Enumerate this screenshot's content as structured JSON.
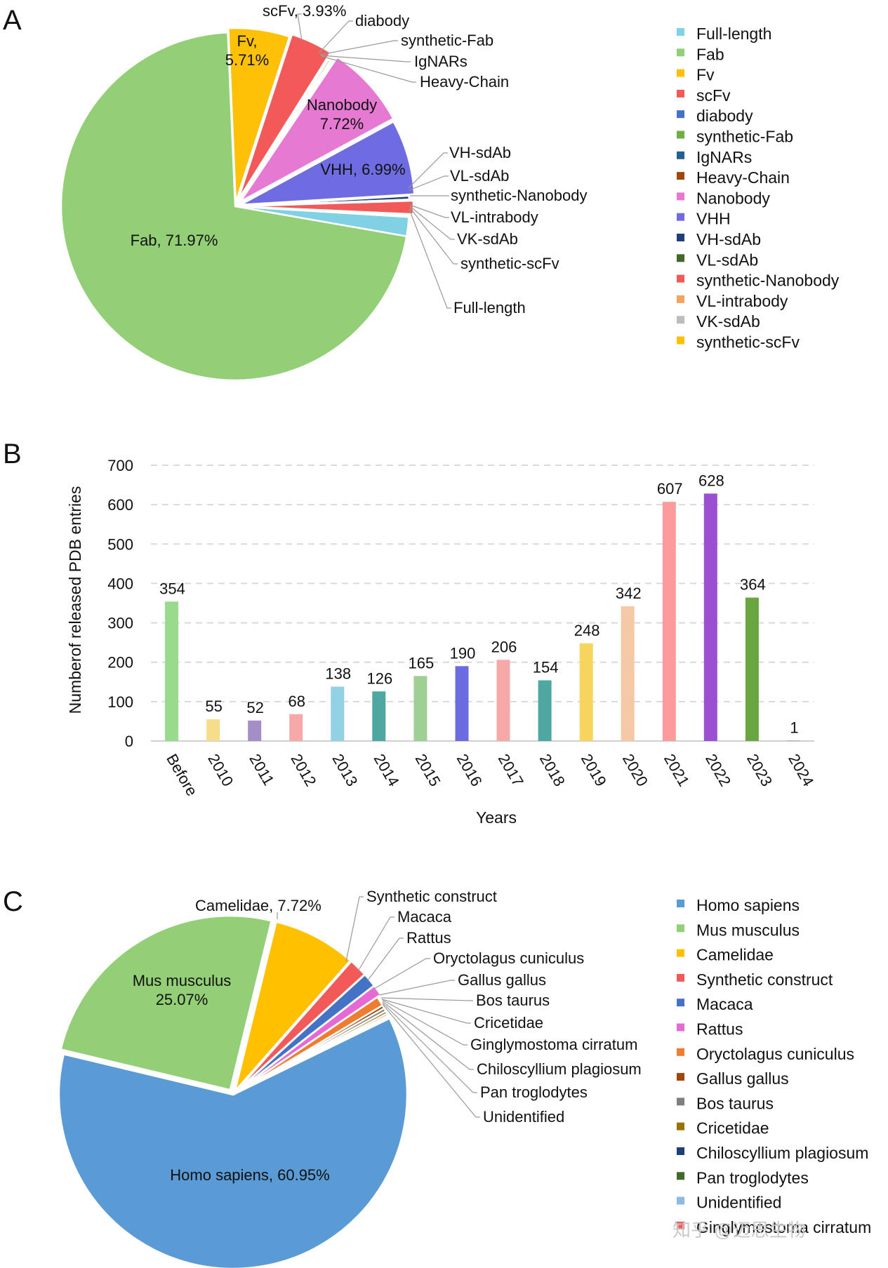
{
  "chart_data": [
    {
      "panel": "A",
      "type": "pie",
      "slices": [
        {
          "name": "Full-length",
          "value": 1.8,
          "color": "#7fd1e3",
          "label": ""
        },
        {
          "name": "Fab",
          "value": 71.97,
          "color": "#93cf76",
          "label": "Fab, 71.97%"
        },
        {
          "name": "Fv",
          "value": 5.71,
          "color": "#ffc107",
          "label": "Fv,\n5.71%"
        },
        {
          "name": "scFv",
          "value": 3.93,
          "color": "#f25a5a",
          "label": "scFv, 3.93%"
        },
        {
          "name": "diabody",
          "value": 0.1,
          "color": "#4472c4",
          "label": ""
        },
        {
          "name": "synthetic-Fab",
          "value": 0.2,
          "color": "#70ad47",
          "label": ""
        },
        {
          "name": "IgNARs",
          "value": 0.1,
          "color": "#255e91",
          "label": ""
        },
        {
          "name": "Heavy-Chain",
          "value": 0.1,
          "color": "#9e480e",
          "label": ""
        },
        {
          "name": "Nanobody",
          "value": 7.72,
          "color": "#e67ad3",
          "label": "Nanobody\n7.72%"
        },
        {
          "name": "VHH",
          "value": 6.99,
          "color": "#6e6ce0",
          "label": "VHH, 6.99%"
        },
        {
          "name": "VH-sdAb",
          "value": 0.35,
          "color": "#1f3f7a",
          "label": ""
        },
        {
          "name": "VL-sdAb",
          "value": 0.1,
          "color": "#43682b",
          "label": ""
        },
        {
          "name": "synthetic-Nanobody",
          "value": 1.25,
          "color": "#f25a5a",
          "label": ""
        },
        {
          "name": "VL-intrabody",
          "value": 0.1,
          "color": "#f4a460",
          "label": ""
        },
        {
          "name": "VK-sdAb",
          "value": 0.1,
          "color": "#bdbdbd",
          "label": ""
        },
        {
          "name": "synthetic-scFv",
          "value": 0.05,
          "color": "#ffc000",
          "label": ""
        }
      ],
      "callouts": [
        "scFv, 3.93%",
        "diabody",
        "synthetic-Fab",
        "IgNARs",
        "Heavy-Chain",
        "VH-sdAb",
        "VL-sdAb",
        "synthetic-Nanobody",
        "VL-intrabody",
        "VK-sdAb",
        "synthetic-scFv",
        "Full-length"
      ],
      "legend": [
        "Full-length",
        "Fab",
        "Fv",
        "scFv",
        "diabody",
        "synthetic-Fab",
        "IgNARs",
        "Heavy-Chain",
        "Nanobody",
        "VHH",
        "VH-sdAb",
        "VL-sdAb",
        "synthetic-Nanobody",
        "VL-intrabody",
        "VK-sdAb",
        "synthetic-scFv"
      ]
    },
    {
      "panel": "B",
      "type": "bar",
      "categories": [
        "Before",
        "2010",
        "2011",
        "2012",
        "2013",
        "2014",
        "2015",
        "2016",
        "2017",
        "2018",
        "2019",
        "2020",
        "2021",
        "2022",
        "2023",
        "2024"
      ],
      "values": [
        354,
        55,
        52,
        68,
        138,
        126,
        165,
        190,
        206,
        154,
        248,
        342,
        607,
        628,
        364,
        1
      ],
      "colors": [
        "#99db8c",
        "#f7dc8c",
        "#a58ec7",
        "#f7a8a8",
        "#92d0e3",
        "#4fa7a1",
        "#9fcf93",
        "#6c6ce0",
        "#f7a8a8",
        "#4fa7a1",
        "#f7d45b",
        "#f5c8a6",
        "#fb9b9b",
        "#9b4fd1",
        "#6aa63f",
        "#a6a6a6"
      ],
      "yticks": [
        "0",
        "100",
        "200",
        "300",
        "400",
        "500",
        "600",
        "700"
      ],
      "ylim": [
        0,
        700
      ],
      "xlabel": "Years",
      "ylabel": "Numberof released PDB entries",
      "grid": true
    },
    {
      "panel": "C",
      "type": "pie",
      "slices": [
        {
          "name": "Homo sapiens",
          "value": 60.95,
          "color": "#5b9bd5",
          "label": "Homo sapiens, 60.95%"
        },
        {
          "name": "Mus musculus",
          "value": 25.07,
          "color": "#93cf76",
          "label": "Mus musculus\n25.07%"
        },
        {
          "name": "Camelidae",
          "value": 7.72,
          "color": "#ffc000",
          "label": "Camelidae, 7.72%"
        },
        {
          "name": "Synthetic construct",
          "value": 1.7,
          "color": "#f25a5a",
          "label": ""
        },
        {
          "name": "Macaca",
          "value": 1.3,
          "color": "#4472c4",
          "label": ""
        },
        {
          "name": "Rattus",
          "value": 1.0,
          "color": "#e66ad3",
          "label": ""
        },
        {
          "name": "Oryctolagus cuniculus",
          "value": 0.9,
          "color": "#ed7d31",
          "label": ""
        },
        {
          "name": "Gallus gallus",
          "value": 0.3,
          "color": "#9e480e",
          "label": ""
        },
        {
          "name": "Bos taurus",
          "value": 0.3,
          "color": "#7f7f7f",
          "label": ""
        },
        {
          "name": "Cricetidae",
          "value": 0.25,
          "color": "#997300",
          "label": ""
        },
        {
          "name": "Ginglymostoma cirratum",
          "value": 0.2,
          "color": "#f25a5a",
          "label": ""
        },
        {
          "name": "Chiloscyllium plagiosum",
          "value": 0.15,
          "color": "#1f3f7a",
          "label": ""
        },
        {
          "name": "Pan troglodytes",
          "value": 0.1,
          "color": "#43682b",
          "label": ""
        },
        {
          "name": "Unidentified",
          "value": 0.05,
          "color": "#8fb9e0",
          "label": ""
        }
      ],
      "callouts": [
        "Synthetic construct",
        "Macaca",
        "Rattus",
        "Oryctolagus cuniculus",
        "Gallus gallus",
        "Bos taurus",
        "Cricetidae",
        "Ginglymostoma cirratum",
        "Chiloscyllium plagiosum",
        "Pan troglodytes",
        "Unidentified"
      ],
      "legend": [
        "Homo sapiens",
        "Mus musculus",
        "Camelidae",
        "Synthetic construct",
        "Macaca",
        "Rattus",
        "Oryctolagus cuniculus",
        "Gallus gallus",
        "Bos taurus",
        "Cricetidae",
        "Chiloscyllium plagiosum",
        "Pan troglodytes",
        "Unidentified",
        "Ginglymostoma cirratum"
      ]
    }
  ],
  "panels": {
    "a": "A",
    "b": "B",
    "c": "C"
  },
  "watermark": "知乎 @迈思生物"
}
